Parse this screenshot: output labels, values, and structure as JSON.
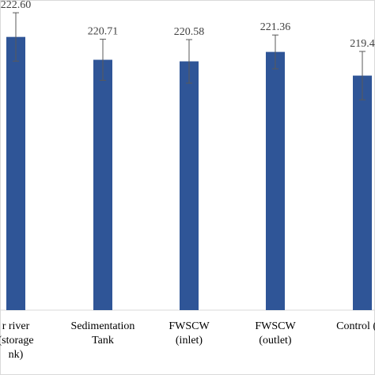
{
  "chart_data": {
    "type": "bar",
    "categories": [
      [
        "r river",
        "(storage",
        "nk)"
      ],
      [
        "Sedimentation",
        "Tank"
      ],
      [
        "FWSCW",
        "(inlet)"
      ],
      [
        "FWSCW",
        "(outlet)"
      ],
      [
        "Control (inl"
      ]
    ],
    "values": [
      222.6,
      220.71,
      220.58,
      221.36,
      219.4
    ],
    "data_labels": [
      "222.60",
      "220.71",
      "220.58",
      "221.36",
      "219.4"
    ],
    "error": [
      2.0,
      1.7,
      1.8,
      1.4,
      2.0
    ],
    "ylim": [
      200,
      225
    ],
    "grid": false,
    "legend": "none",
    "colors": {
      "bar": "#2f5597",
      "error_bar": "#595959",
      "frame": "#d9d9d9"
    }
  }
}
